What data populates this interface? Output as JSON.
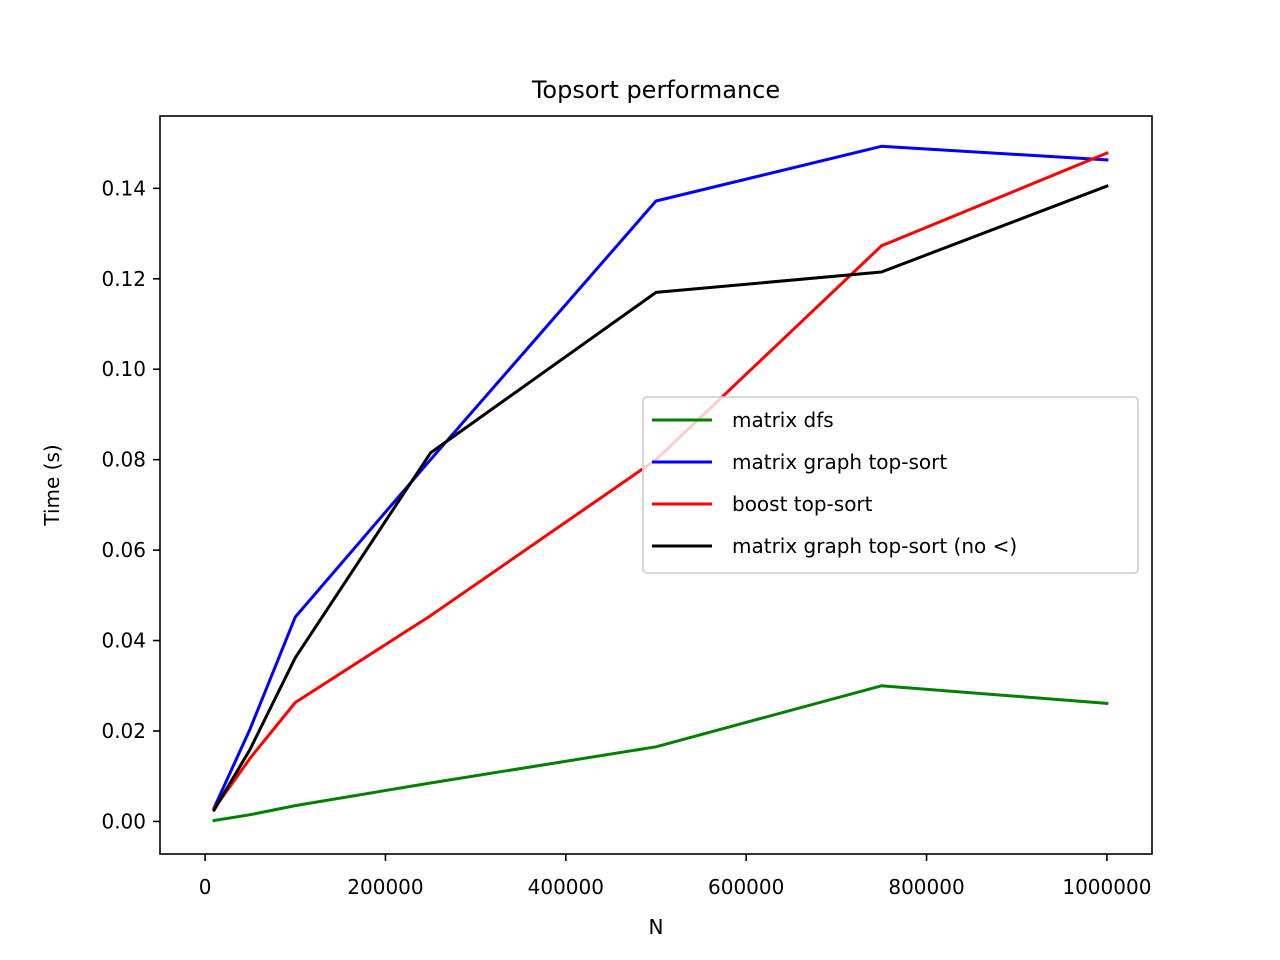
{
  "chart_data": {
    "type": "line",
    "title": "Topsort performance",
    "xlabel": "N",
    "ylabel": "Time (s)",
    "xlim": [
      -50000,
      1050000
    ],
    "ylim": [
      -0.0072,
      0.156
    ],
    "xticks": [
      0,
      200000,
      400000,
      600000,
      800000,
      1000000
    ],
    "xtick_labels": [
      "0",
      "200000",
      "400000",
      "600000",
      "800000",
      "1000000"
    ],
    "yticks": [
      0.0,
      0.02,
      0.04,
      0.06,
      0.08,
      0.1,
      0.12,
      0.14
    ],
    "ytick_labels": [
      "0.00",
      "0.02",
      "0.04",
      "0.06",
      "0.08",
      "0.10",
      "0.12",
      "0.14"
    ],
    "grid": false,
    "legend_position": "center-right",
    "series": [
      {
        "name": "matrix dfs",
        "color": "#008000",
        "x": [
          10000,
          50000,
          100000,
          250000,
          500000,
          750000,
          1000000
        ],
        "y": [
          0.0002,
          0.0015,
          0.0035,
          0.0085,
          0.0165,
          0.03,
          0.0261
        ]
      },
      {
        "name": "matrix graph top-sort",
        "color": "#0000ff",
        "x": [
          10000,
          50000,
          100000,
          250000,
          500000,
          750000,
          1000000
        ],
        "y": [
          0.003,
          0.0205,
          0.0452,
          0.08,
          0.1372,
          0.1493,
          0.1463
        ]
      },
      {
        "name": "boost top-sort",
        "color": "#ff0000",
        "x": [
          10000,
          50000,
          100000,
          250000,
          500000,
          750000,
          1000000
        ],
        "y": [
          0.0028,
          0.014,
          0.0263,
          0.0455,
          0.08,
          0.1273,
          0.1478
        ]
      },
      {
        "name": "matrix graph top-sort (no <)",
        "color": "#000000",
        "x": [
          10000,
          50000,
          100000,
          250000,
          500000,
          750000,
          1000000
        ],
        "y": [
          0.0025,
          0.016,
          0.0362,
          0.0815,
          0.117,
          0.1215,
          0.1405
        ]
      }
    ]
  }
}
